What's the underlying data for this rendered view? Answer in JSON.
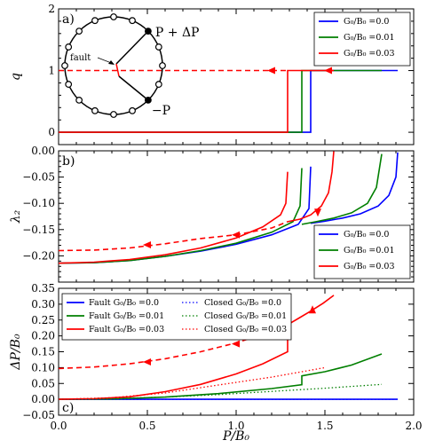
{
  "colors": {
    "blue": "#0000ff",
    "green": "#007f00",
    "red": "#ff0000",
    "black": "#000000"
  },
  "chart_data": [
    {
      "type": "line",
      "panel_label": "a)",
      "ylabel": "q",
      "xlim": [
        0,
        2
      ],
      "ylim": [
        -0.2,
        2
      ],
      "yticks": [
        "0",
        "1",
        "2"
      ],
      "legend": {
        "placement": "top-right",
        "entries": [
          "G₀/B₀ =0.0",
          "G₀/B₀ =0.01",
          "G₀/B₀ =0.03"
        ]
      },
      "series": [
        {
          "name": "G₀/B₀ =0.0",
          "color": "blue",
          "style": "solid",
          "x": [
            0,
            1.42,
            1.42,
            1.91
          ],
          "y": [
            0,
            0,
            1,
            1
          ]
        },
        {
          "name": "G₀/B₀ =0.01",
          "color": "green",
          "style": "solid",
          "x": [
            0,
            1.37,
            1.37,
            1.82
          ],
          "y": [
            0,
            0,
            1,
            1
          ]
        },
        {
          "name": "G₀/B₀ =0.03",
          "color": "red",
          "style": "solid",
          "x": [
            0,
            1.29,
            1.29,
            1.55
          ],
          "y": [
            0,
            0,
            1,
            1
          ]
        },
        {
          "name": "",
          "color": "red",
          "style": "dashed",
          "x": [
            0,
            1.29
          ],
          "y": [
            1,
            1
          ]
        }
      ],
      "arrows": [
        {
          "x": 1.2,
          "y": 1,
          "color": "red"
        },
        {
          "x": 1.52,
          "y": 1,
          "color": "red"
        }
      ],
      "inset": {
        "labels": {
          "plus": "P + ΔP",
          "minus": "−P",
          "fault": "fault"
        }
      }
    },
    {
      "type": "line",
      "panel_label": "b)",
      "ylabel": "λ₂",
      "xlim": [
        0,
        2
      ],
      "ylim": [
        -0.25,
        0
      ],
      "yticks": [
        "0.00",
        "−0.05",
        "−0.10",
        "−0.15",
        "−0.20"
      ],
      "legend": {
        "placement": "bottom-right",
        "entries": [
          "G₀/B₀ =0.0",
          "G₀/B₀ =0.01",
          "G₀/B₀ =0.03"
        ]
      },
      "series": [
        {
          "name": "G₀/B₀ =0.0",
          "color": "blue",
          "style": "solid",
          "x": [
            0,
            0.2,
            0.4,
            0.6,
            0.8,
            1.0,
            1.2,
            1.35,
            1.41,
            1.42
          ],
          "y": [
            -0.214,
            -0.213,
            -0.209,
            -0.201,
            -0.191,
            -0.178,
            -0.16,
            -0.14,
            -0.11,
            -0.03
          ]
        },
        {
          "name": "",
          "color": "blue",
          "style": "solid",
          "x": [
            1.42,
            1.5,
            1.6,
            1.7,
            1.8,
            1.86,
            1.9,
            1.91
          ],
          "y": [
            -0.138,
            -0.134,
            -0.128,
            -0.12,
            -0.105,
            -0.085,
            -0.05,
            -0.003
          ]
        },
        {
          "name": "G₀/B₀ =0.01",
          "color": "green",
          "style": "solid",
          "x": [
            0,
            0.2,
            0.4,
            0.6,
            0.8,
            1.0,
            1.2,
            1.32,
            1.36,
            1.37
          ],
          "y": [
            -0.214,
            -0.213,
            -0.209,
            -0.201,
            -0.19,
            -0.176,
            -0.155,
            -0.135,
            -0.105,
            -0.033
          ]
        },
        {
          "name": "",
          "color": "green",
          "style": "solid",
          "x": [
            1.37,
            1.45,
            1.55,
            1.65,
            1.74,
            1.79,
            1.82
          ],
          "y": [
            -0.14,
            -0.135,
            -0.128,
            -0.118,
            -0.1,
            -0.07,
            -0.006
          ]
        },
        {
          "name": "G₀/B₀ =0.03",
          "color": "red",
          "style": "solid",
          "x": [
            0,
            0.2,
            0.4,
            0.6,
            0.8,
            1.0,
            1.15,
            1.25,
            1.28,
            1.29
          ],
          "y": [
            -0.214,
            -0.212,
            -0.207,
            -0.198,
            -0.185,
            -0.166,
            -0.145,
            -0.122,
            -0.1,
            -0.04
          ]
        },
        {
          "name": "",
          "color": "red",
          "style": "solid",
          "x": [
            1.29,
            1.36,
            1.42,
            1.48,
            1.52,
            1.54,
            1.55
          ],
          "y": [
            -0.135,
            -0.13,
            -0.122,
            -0.105,
            -0.08,
            -0.04,
            -0.001
          ]
        },
        {
          "name": "",
          "color": "red",
          "style": "dashed",
          "x": [
            0,
            0.2,
            0.4,
            0.6,
            0.8,
            1.0,
            1.2,
            1.29
          ],
          "y": [
            -0.19,
            -0.189,
            -0.185,
            -0.177,
            -0.167,
            -0.16,
            -0.147,
            -0.135
          ]
        }
      ],
      "arrows": [
        {
          "x": 0.5,
          "y": -0.179,
          "color": "red",
          "dir": "left"
        },
        {
          "x": 1.0,
          "y": -0.16,
          "color": "red",
          "dir": "left"
        },
        {
          "x": 1.46,
          "y": -0.117,
          "color": "red",
          "dir": "down"
        }
      ]
    },
    {
      "type": "line",
      "panel_label": "c)",
      "xlabel": "P/B₀",
      "ylabel": "ΔP/B₀",
      "xlim": [
        0,
        2
      ],
      "ylim": [
        -0.05,
        0.35
      ],
      "xticks": [
        "0.0",
        "0.5",
        "1.0",
        "1.5",
        "2.0"
      ],
      "yticks": [
        "−0.05",
        "0.00",
        "0.05",
        "0.10",
        "0.15",
        "0.20",
        "0.25",
        "0.30",
        "0.35"
      ],
      "legend": {
        "placement": "top-left",
        "entries": [
          "Fault G₀/B₀ =0.0",
          "Fault G₀/B₀ =0.01",
          "Fault G₀/B₀ =0.03",
          "Closed G₀/B₀ =0.0",
          "Closed G₀/B₀ =0.01",
          "Closed G₀/B₀ =0.03"
        ]
      },
      "series": [
        {
          "name": "Fault G₀/B₀ =0.0",
          "color": "blue",
          "style": "solid",
          "x": [
            0,
            1.91
          ],
          "y": [
            0,
            0
          ]
        },
        {
          "name": "Fault G₀/B₀ =0.01",
          "color": "green",
          "style": "solid",
          "x": [
            0,
            0.3,
            0.6,
            0.9,
            1.2,
            1.37,
            1.37,
            1.5,
            1.65,
            1.82
          ],
          "y": [
            0,
            0.001,
            0.007,
            0.018,
            0.034,
            0.046,
            0.074,
            0.087,
            0.108,
            0.143
          ]
        },
        {
          "name": "Fault G₀/B₀ =0.03",
          "color": "red",
          "style": "solid",
          "x": [
            0,
            0.2,
            0.4,
            0.6,
            0.8,
            1.0,
            1.15,
            1.29,
            1.29,
            1.35,
            1.42,
            1.49,
            1.55
          ],
          "y": [
            0,
            0.002,
            0.008,
            0.024,
            0.047,
            0.08,
            0.112,
            0.15,
            0.235,
            0.255,
            0.278,
            0.303,
            0.328
          ]
        },
        {
          "name": "",
          "color": "red",
          "style": "dashed",
          "x": [
            0,
            0.2,
            0.4,
            0.6,
            0.8,
            1.0,
            1.15,
            1.29
          ],
          "y": [
            0.097,
            0.102,
            0.112,
            0.128,
            0.15,
            0.178,
            0.205,
            0.235
          ]
        },
        {
          "name": "Closed G₀/B₀ =0.0",
          "color": "blue",
          "style": "dotted",
          "x": [
            0,
            1.9
          ],
          "y": [
            0,
            0
          ]
        },
        {
          "name": "Closed G₀/B₀ =0.01",
          "color": "green",
          "style": "dotted",
          "x": [
            0,
            0.3,
            0.6,
            0.9,
            1.2,
            1.5,
            1.82
          ],
          "y": [
            0,
            0.002,
            0.007,
            0.015,
            0.025,
            0.035,
            0.047
          ]
        },
        {
          "name": "Closed G₀/B₀ =0.03",
          "color": "red",
          "style": "dotted",
          "x": [
            0,
            0.3,
            0.6,
            0.9,
            1.2,
            1.5
          ],
          "y": [
            0,
            0.005,
            0.02,
            0.045,
            0.07,
            0.1
          ]
        }
      ],
      "arrows": [
        {
          "x": 0.5,
          "y": 0.118,
          "color": "red",
          "dir": "left"
        },
        {
          "x": 1.0,
          "y": 0.175,
          "color": "red",
          "dir": "left"
        },
        {
          "x": 1.43,
          "y": 0.282,
          "color": "red",
          "dir": "up"
        }
      ]
    }
  ]
}
